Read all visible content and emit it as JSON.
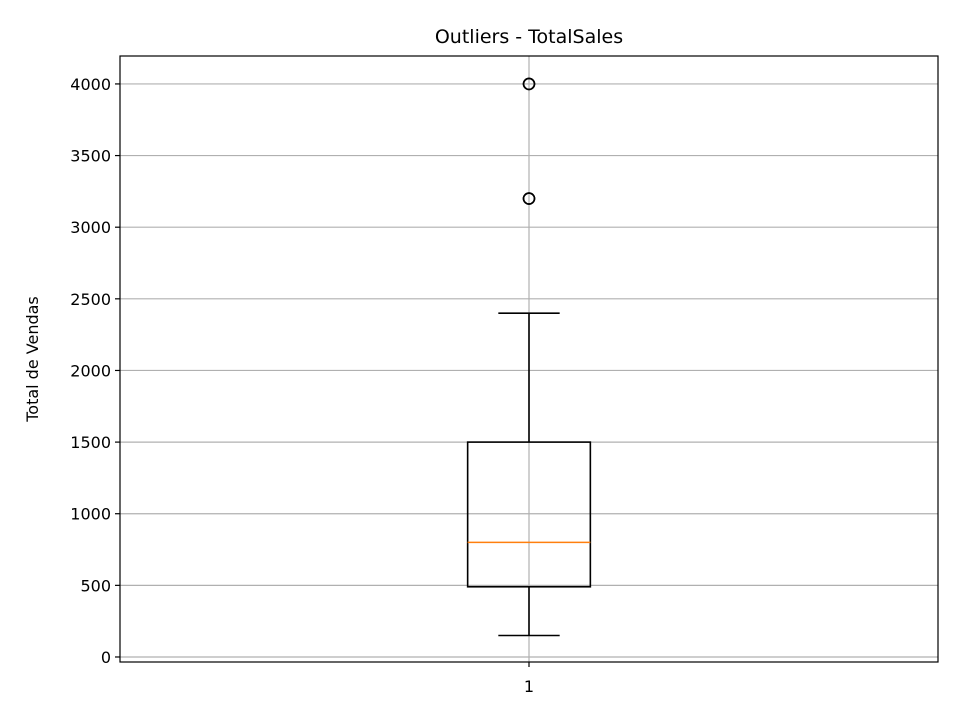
{
  "chart_data": {
    "type": "boxplot",
    "title": "Outliers - TotalSales",
    "xlabel": "",
    "ylabel": "Total de Vendas",
    "categories": [
      "1"
    ],
    "ylim": [
      -35,
      4195
    ],
    "yticks": [
      0,
      500,
      1000,
      1500,
      2000,
      2500,
      3000,
      3500,
      4000
    ],
    "grid": true,
    "boxes": [
      {
        "category": "1",
        "whisker_low": 150,
        "q1": 490,
        "median": 800,
        "q3": 1500,
        "whisker_high": 2400,
        "outliers": [
          3200,
          3200,
          4000,
          4000
        ]
      }
    ],
    "colors": {
      "box": "#000000",
      "median": "#ff7f0e",
      "grid": "#b0b0b0"
    }
  }
}
